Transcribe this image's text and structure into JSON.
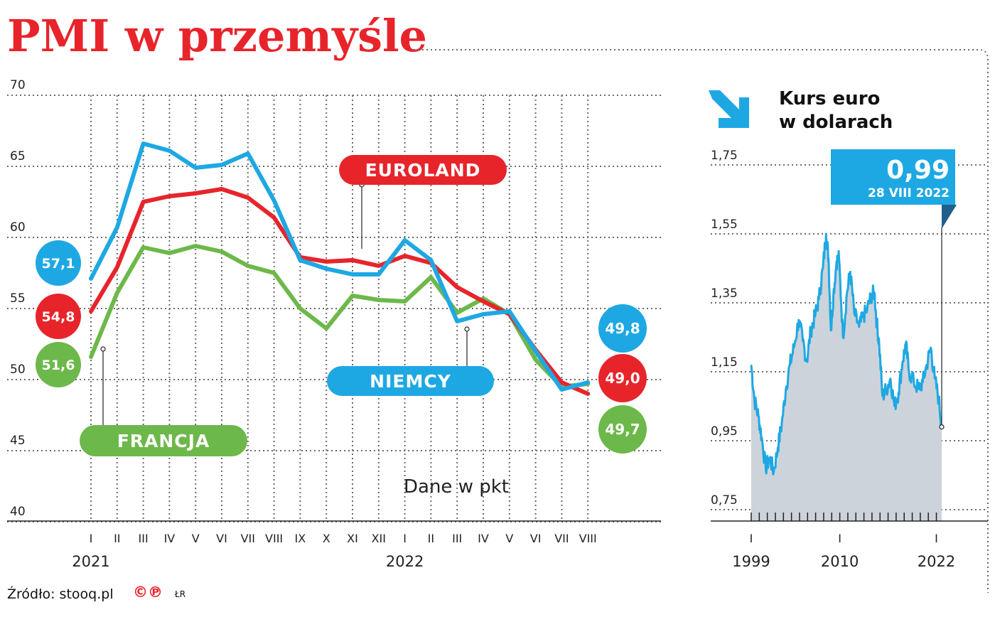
{
  "title": "PMI w przemyśle",
  "source": "Źródło: stooq.pl",
  "copyright_marks": "©℗",
  "author": "ŁR",
  "colors": {
    "title": "#e8242b",
    "euroland": "#e8242b",
    "niemcy": "#1ea8e3",
    "francja": "#6db84a",
    "area": "#cdd3db",
    "grid": "#6b6b6b"
  },
  "chart_data": [
    {
      "type": "line",
      "unit_note": "Dane w pkt",
      "y_ticks": [
        "70",
        "65",
        "60",
        "55",
        "50",
        "45",
        "40"
      ],
      "ylim": [
        40,
        70
      ],
      "categories": [
        "I",
        "II",
        "III",
        "IV",
        "V",
        "VI",
        "VII",
        "VIII",
        "IX",
        "X",
        "XI",
        "XII",
        "I",
        "II",
        "III",
        "IV",
        "V",
        "VI",
        "VII",
        "VIII"
      ],
      "year_labels": [
        "2021",
        "2022"
      ],
      "grid": true,
      "series": [
        {
          "name": "NIEMCY",
          "color": "#1ea8e3",
          "values": [
            57.1,
            60.7,
            66.6,
            66.1,
            64.9,
            65.1,
            65.9,
            62.6,
            58.4,
            57.8,
            57.4,
            57.4,
            59.8,
            58.4,
            54.1,
            54.6,
            54.8,
            52.0,
            49.3,
            49.8
          ],
          "start_label": "57,1",
          "end_label": "49,8"
        },
        {
          "name": "EUROLAND",
          "color": "#e8242b",
          "values": [
            54.8,
            57.9,
            62.5,
            62.9,
            63.1,
            63.4,
            62.8,
            61.4,
            58.6,
            58.3,
            58.4,
            58.0,
            58.7,
            58.2,
            56.5,
            55.5,
            54.6,
            52.1,
            49.8,
            49.0
          ],
          "start_label": "54,8",
          "end_label": "49,0"
        },
        {
          "name": "FRANCJA",
          "color": "#6db84a",
          "values": [
            51.6,
            56.1,
            59.3,
            58.9,
            59.4,
            59.0,
            58.0,
            57.5,
            55.0,
            53.6,
            55.9,
            55.6,
            55.5,
            57.2,
            54.7,
            55.7,
            54.6,
            51.4,
            49.5,
            49.7
          ],
          "start_label": "51,6",
          "end_label": "49,7"
        }
      ]
    },
    {
      "type": "area",
      "title": "Kurs euro w dolarach",
      "title_lines": [
        "Kurs euro",
        "w dolarach"
      ],
      "y_ticks": [
        "1,75",
        "1,55",
        "1,35",
        "1,15",
        "0,95",
        "0,75"
      ],
      "ylim": [
        0.75,
        1.85
      ],
      "x_labels": [
        "1999",
        "2010",
        "2022"
      ],
      "x": [
        1999.0,
        1999.4,
        1999.9,
        2000.3,
        2000.8,
        2001.3,
        2001.8,
        2002.3,
        2002.8,
        2003.3,
        2003.8,
        2004.3,
        2004.9,
        2005.4,
        2005.9,
        2006.4,
        2006.9,
        2007.4,
        2007.9,
        2008.3,
        2008.6,
        2008.9,
        2009.2,
        2009.6,
        2009.9,
        2010.4,
        2010.9,
        2011.3,
        2011.8,
        2012.4,
        2012.9,
        2013.4,
        2013.9,
        2014.3,
        2014.6,
        2014.9,
        2015.3,
        2015.8,
        2016.3,
        2016.8,
        2017.3,
        2017.8,
        2018.2,
        2018.6,
        2019.2,
        2019.8,
        2020.3,
        2020.8,
        2021.3,
        2021.8,
        2022.3,
        2022.66
      ],
      "values": [
        1.17,
        1.07,
        1.02,
        0.96,
        0.87,
        0.9,
        0.86,
        0.93,
        1.0,
        1.1,
        1.17,
        1.22,
        1.3,
        1.24,
        1.18,
        1.27,
        1.31,
        1.36,
        1.45,
        1.55,
        1.48,
        1.27,
        1.37,
        1.47,
        1.48,
        1.25,
        1.38,
        1.44,
        1.32,
        1.28,
        1.31,
        1.33,
        1.37,
        1.38,
        1.29,
        1.23,
        1.08,
        1.1,
        1.13,
        1.05,
        1.09,
        1.18,
        1.23,
        1.15,
        1.12,
        1.1,
        1.12,
        1.17,
        1.22,
        1.13,
        1.07,
        0.99
      ],
      "callout_value": "0,99",
      "callout_date": "28 VIII 2022"
    }
  ]
}
